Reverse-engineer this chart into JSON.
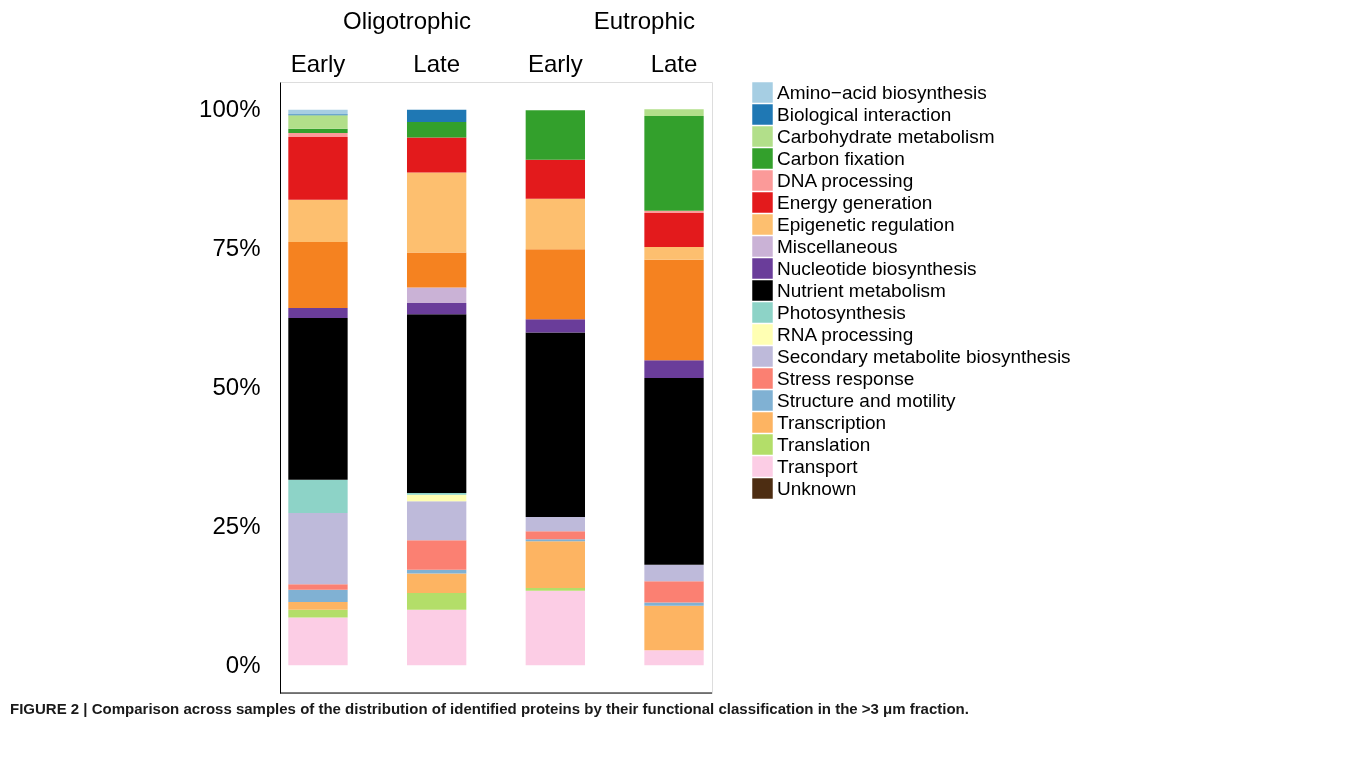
{
  "chart_data": {
    "type": "bar",
    "stacked": true,
    "categories": [
      "Early",
      "Late",
      "Early",
      "Late"
    ],
    "annotations": [
      "Oligotrophic",
      "Eutrophic",
      "FIGURE 2 | Comparison across samples of the distribution of identified proteins by their functional classification in the >3 μm fraction."
    ],
    "ylim": [
      -5,
      105
    ],
    "yticks": [
      {
        "value": 0,
        "label": "0%"
      },
      {
        "value": 25,
        "label": "25%"
      },
      {
        "value": 50,
        "label": "50%"
      },
      {
        "value": 75,
        "label": "75%"
      },
      {
        "value": 100,
        "label": "100%"
      }
    ],
    "grid": false,
    "legend": "right",
    "series": [
      {
        "name": "Unknown",
        "color": "#4d2d12",
        "values": [
          null,
          null,
          null,
          null
        ]
      },
      {
        "name": "Transport",
        "color": "#fccde5",
        "values": [
          8.6,
          10.0,
          13.4,
          2.7
        ]
      },
      {
        "name": "Translation",
        "color": "#b3de69",
        "values": [
          1.4,
          3.0,
          0.5,
          null
        ]
      },
      {
        "name": "Transcription",
        "color": "#fdb462",
        "values": [
          1.4,
          3.5,
          8.4,
          8.0
        ]
      },
      {
        "name": "Structure and motility",
        "color": "#80b1d3",
        "values": [
          2.2,
          0.7,
          0.4,
          0.6
        ]
      },
      {
        "name": "Stress response",
        "color": "#fb8072",
        "values": [
          1.0,
          5.3,
          1.4,
          3.8
        ]
      },
      {
        "name": "Secondary metabolite biosynthesis",
        "color": "#bebada",
        "values": [
          12.8,
          7.0,
          2.6,
          3.0
        ]
      },
      {
        "name": "RNA processing",
        "color": "#ffffb3",
        "values": [
          null,
          1.2,
          null,
          null
        ]
      },
      {
        "name": "Photosynthesis",
        "color": "#8dd3c7",
        "values": [
          6.0,
          0.3,
          null,
          null
        ]
      },
      {
        "name": "Nutrient metabolism",
        "color": "#000000",
        "values": [
          29.1,
          32.2,
          33.2,
          33.6
        ]
      },
      {
        "name": "Nucleotide biosynthesis",
        "color": "#6a3d9a",
        "values": [
          1.8,
          2.0,
          2.4,
          3.2
        ]
      },
      {
        "name": "Miscellaneous",
        "color": "#cab2d6",
        "values": [
          null,
          2.8,
          null,
          null
        ]
      },
      {
        "color": "#f58220",
        "values": [
          11.9,
          6.3,
          12.6,
          18.1
        ]
      },
      {
        "name": "Epigenetic regulation",
        "color": "#fdbf6f",
        "values": [
          7.6,
          14.4,
          9.1,
          2.3
        ]
      },
      {
        "name": "Energy generation",
        "color": "#e31a1c",
        "values": [
          11.3,
          6.3,
          7.0,
          6.1
        ]
      },
      {
        "name": "DNA processing",
        "color": "#fb9a99",
        "values": [
          0.7,
          null,
          null,
          0.4
        ]
      },
      {
        "name": "Carbon fixation",
        "color": "#33a02c",
        "values": [
          0.8,
          2.8,
          8.9,
          17.1
        ]
      },
      {
        "name": "Carbohydrate metabolism",
        "color": "#b2df8a",
        "values": [
          2.4,
          null,
          null,
          1.2
        ]
      },
      {
        "name": "Biological interaction",
        "color": "#1f78b4",
        "values": [
          0.2,
          2.2,
          null,
          null
        ]
      },
      {
        "name": "Amino−acid biosynthesis",
        "color": "#a6cee3",
        "values": [
          0.8,
          null,
          null,
          null
        ]
      }
    ]
  }
}
